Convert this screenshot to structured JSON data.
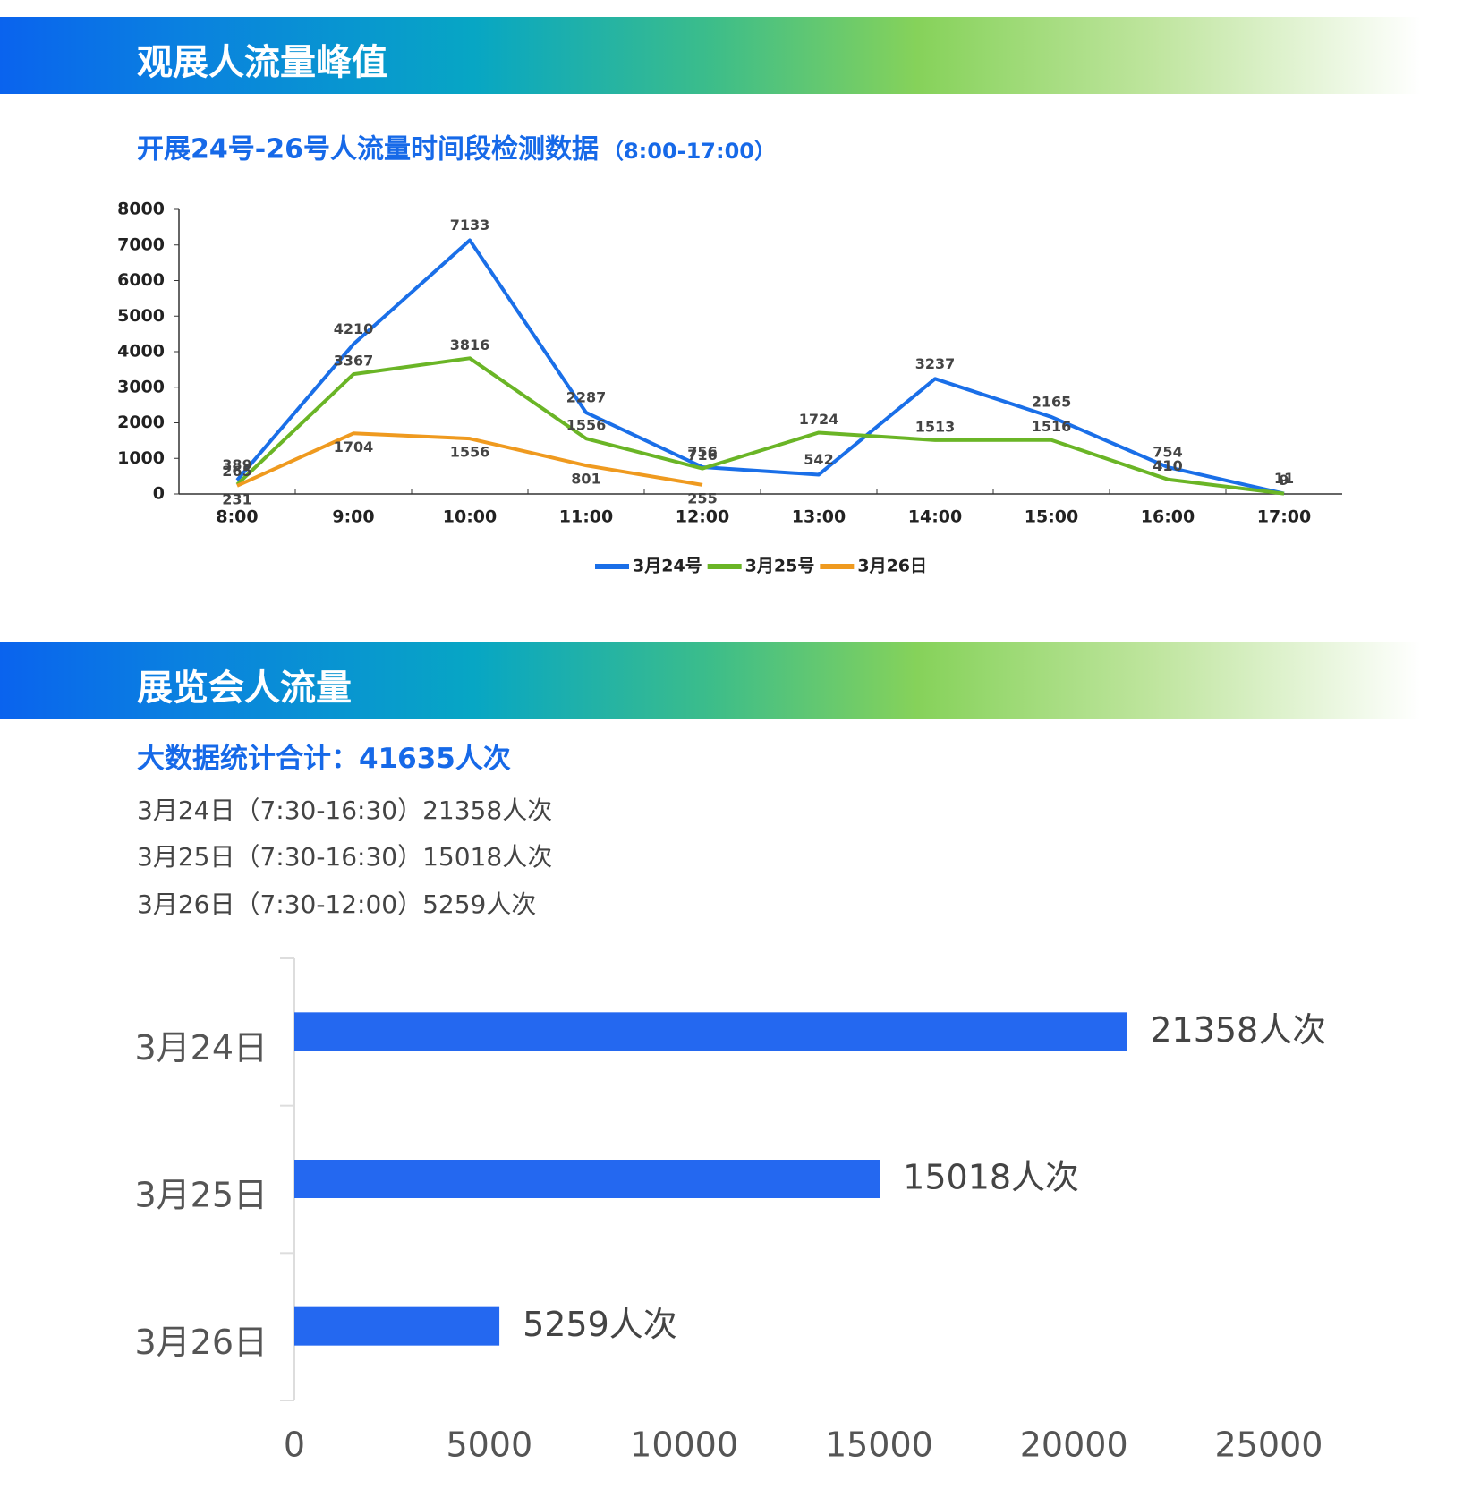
{
  "section_titles": [
    "观展人流量峰值",
    "展览会人流量"
  ],
  "summary": {
    "total": "大数据统计合计：41635人次",
    "lines": [
      "3月24日（7:30-16:30）21358人次",
      "3月25日（7:30-16:30）15018人次",
      "3月26日（7:30-12:00）5259人次"
    ]
  },
  "chart_data": [
    {
      "type": "line",
      "title": "开展24号-26号人流量时间段检测数据",
      "subtitle": "（8:00-17:00）",
      "categories": [
        "8:00",
        "9:00",
        "10:00",
        "11:00",
        "12:00",
        "13:00",
        "14:00",
        "15:00",
        "16:00",
        "17:00"
      ],
      "series": [
        {
          "name": "3月24号",
          "color": "#1a6fe8",
          "values": [
            389,
            4210,
            7133,
            2287,
            756,
            542,
            3237,
            2165,
            754,
            11
          ]
        },
        {
          "name": "3月25号",
          "color": "#6ab526",
          "values": [
            265,
            3367,
            3816,
            1556,
            716,
            1724,
            1513,
            1516,
            410,
            9
          ]
        },
        {
          "name": "3月26日",
          "color": "#ef9a1f",
          "values": [
            231,
            1704,
            1556,
            801,
            255,
            null,
            null,
            null,
            null,
            null
          ]
        }
      ],
      "ylim": [
        0,
        8000
      ],
      "yticks": [
        0,
        1000,
        2000,
        3000,
        4000,
        5000,
        6000,
        7000,
        8000
      ],
      "legend": "bottom"
    },
    {
      "type": "hbar",
      "categories": [
        "3月24日",
        "3月25日",
        "3月26日"
      ],
      "values": [
        21358,
        15018,
        5259
      ],
      "value_labels": [
        "21358人次",
        "15018人次",
        "5259人次"
      ],
      "color": "#2468f0",
      "xlim": [
        0,
        25000
      ],
      "xticks": [
        0,
        5000,
        10000,
        15000,
        20000,
        25000
      ]
    }
  ]
}
